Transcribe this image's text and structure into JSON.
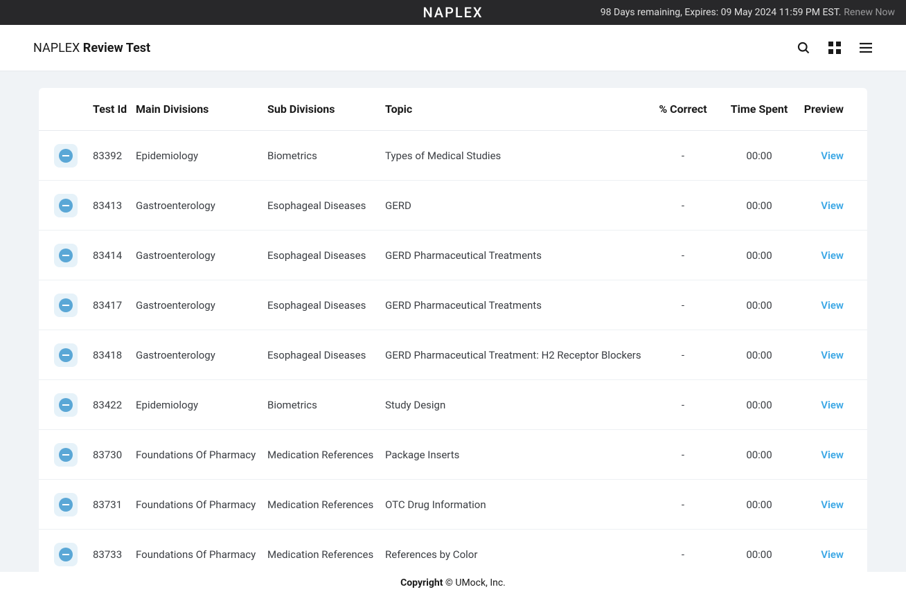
{
  "topBanner": {
    "title": "NAPLEX",
    "notice": "98 Days remaining, Expires: 09 May 2024 11:59 PM EST.",
    "renewLabel": "Renew Now"
  },
  "header": {
    "brand": "NAPLEX",
    "pageTitle": "Review Test"
  },
  "table": {
    "columns": {
      "testId": "Test Id",
      "mainDivisions": "Main Divisions",
      "subDivisions": "Sub Divisions",
      "topic": "Topic",
      "percentCorrect": "% Correct",
      "timeSpent": "Time Spent",
      "preview": "Preview"
    },
    "viewLabel": "View",
    "rows": [
      {
        "testId": "83392",
        "main": "Epidemiology",
        "sub": "Biometrics",
        "topic": "Types of Medical Studies",
        "correct": "-",
        "time": "00:00"
      },
      {
        "testId": "83413",
        "main": "Gastroenterology",
        "sub": "Esophageal Diseases",
        "topic": "GERD",
        "correct": "-",
        "time": "00:00"
      },
      {
        "testId": "83414",
        "main": "Gastroenterology",
        "sub": "Esophageal Diseases",
        "topic": "GERD Pharmaceutical Treatments",
        "correct": "-",
        "time": "00:00"
      },
      {
        "testId": "83417",
        "main": "Gastroenterology",
        "sub": "Esophageal Diseases",
        "topic": "GERD Pharmaceutical Treatments",
        "correct": "-",
        "time": "00:00"
      },
      {
        "testId": "83418",
        "main": "Gastroenterology",
        "sub": "Esophageal Diseases",
        "topic": "GERD Pharmaceutical Treatment: H2 Receptor Blockers",
        "correct": "-",
        "time": "00:00"
      },
      {
        "testId": "83422",
        "main": "Epidemiology",
        "sub": "Biometrics",
        "topic": "Study Design",
        "correct": "-",
        "time": "00:00"
      },
      {
        "testId": "83730",
        "main": "Foundations Of Pharmacy",
        "sub": "Medication References",
        "topic": "Package Inserts",
        "correct": "-",
        "time": "00:00"
      },
      {
        "testId": "83731",
        "main": "Foundations Of Pharmacy",
        "sub": "Medication References",
        "topic": "OTC Drug Information",
        "correct": "-",
        "time": "00:00"
      },
      {
        "testId": "83733",
        "main": "Foundations Of Pharmacy",
        "sub": "Medication References",
        "topic": "References by Color",
        "correct": "-",
        "time": "00:00"
      }
    ]
  },
  "footer": {
    "copyrightBold": "Copyright",
    "copyrightRest": " © UMock, Inc."
  },
  "colors": {
    "bannerBg": "#28282a",
    "pageBg": "#f0f3f6",
    "linkBlue": "#3ba7e5",
    "iconBg": "#e6f2f9",
    "iconCircle": "#5aa7d6"
  }
}
